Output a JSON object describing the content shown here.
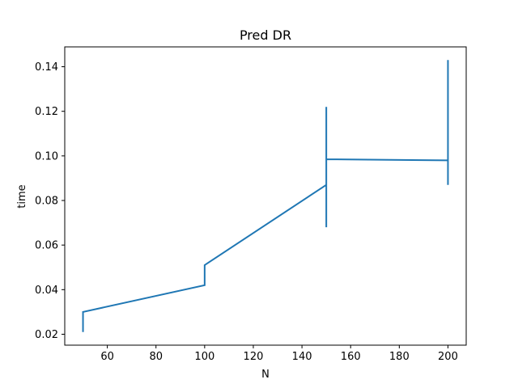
{
  "chart_data": {
    "type": "line",
    "title": "Pred DR",
    "xlabel": "N",
    "ylabel": "time",
    "xlim": [
      42.5,
      207.5
    ],
    "ylim": [
      0.0151,
      0.1489
    ],
    "xticks": [
      60,
      80,
      100,
      120,
      140,
      160,
      180,
      200
    ],
    "xtick_labels": [
      "60",
      "80",
      "100",
      "120",
      "140",
      "160",
      "180",
      "200"
    ],
    "yticks": [
      0.02,
      0.04,
      0.06,
      0.08,
      0.1,
      0.12,
      0.14
    ],
    "ytick_labels": [
      "0.02",
      "0.04",
      "0.06",
      "0.08",
      "0.10",
      "0.12",
      "0.14"
    ],
    "grid": false,
    "series": [
      {
        "color": "#1f77b4",
        "points": [
          [
            50,
            0.021
          ],
          [
            50,
            0.03
          ],
          [
            100,
            0.042
          ],
          [
            100,
            0.051
          ],
          [
            150,
            0.087
          ],
          [
            150,
            0.122
          ],
          [
            150,
            0.068
          ],
          [
            150,
            0.0985
          ],
          [
            200,
            0.098
          ],
          [
            200,
            0.143
          ],
          [
            200,
            0.087
          ],
          [
            200,
            0.142
          ],
          [
            200,
            0.088
          ]
        ]
      }
    ]
  }
}
